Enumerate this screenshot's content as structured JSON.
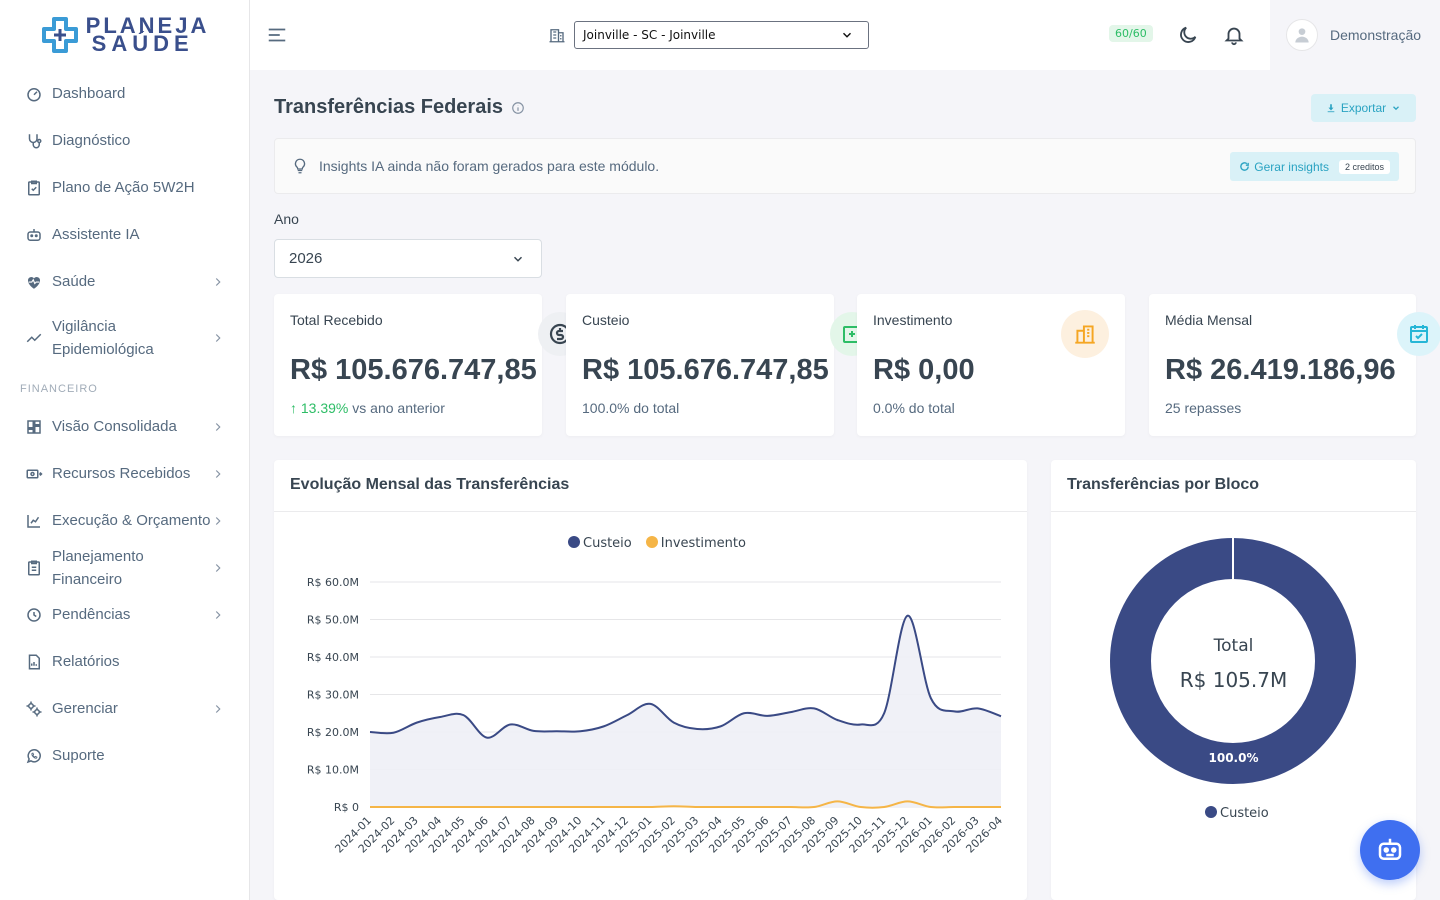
{
  "app": {
    "logo_line1": "PLANEJA",
    "logo_line2": "SAÚDE"
  },
  "sidebar": {
    "items": [
      {
        "label": "Dashboard",
        "icon": "gauge-icon"
      },
      {
        "label": "Diagnóstico",
        "icon": "stethoscope-icon"
      },
      {
        "label": "Plano de Ação 5W2H",
        "icon": "clipboard-check-icon"
      },
      {
        "label": "Assistente IA",
        "icon": "robot-icon"
      },
      {
        "label": "Saúde",
        "icon": "heart-pulse-icon",
        "has_submenu": true
      },
      {
        "label": "Vigilância Epidemiológica",
        "icon": "trend-icon",
        "has_submenu": true
      }
    ],
    "section_header": "FINANCEIRO",
    "finance_items": [
      {
        "label": "Visão Consolidada",
        "icon": "dashboard-grid-icon",
        "has_submenu": true
      },
      {
        "label": "Recursos Recebidos",
        "icon": "money-receive-icon",
        "has_submenu": true
      },
      {
        "label": "Execução & Orçamento",
        "icon": "chart-icon",
        "has_submenu": true
      },
      {
        "label": "Planejamento Financeiro",
        "icon": "clipboard-list-icon",
        "has_submenu": true
      },
      {
        "label": "Pendências",
        "icon": "clock-icon",
        "has_submenu": true
      },
      {
        "label": "Relatórios",
        "icon": "report-icon"
      },
      {
        "label": "Gerenciar",
        "icon": "settings-icon",
        "has_submenu": true
      },
      {
        "label": "Suporte",
        "icon": "whatsapp-icon"
      }
    ]
  },
  "topbar": {
    "organization": "Joinville - SC - Joinville",
    "credits": "60/60",
    "user_name": "Demonstração"
  },
  "page": {
    "title": "Transferências Federais",
    "export_label": "Exportar",
    "insights_text": "Insights IA ainda não foram gerados para este módulo.",
    "generate_label": "Gerar insights",
    "generate_credits": "2 creditos",
    "year_label": "Ano",
    "year_value": "2026"
  },
  "stats": [
    {
      "title": "Total Recebido",
      "value": "R$ 105.676.747,85",
      "change": "13.39%",
      "change_suffix": "vs ano anterior",
      "icon": "currency-icon",
      "color": "#566a7f"
    },
    {
      "title": "Custeio",
      "value": "R$ 105.676.747,85",
      "sub": "100.0% do total",
      "icon": "medical-icon",
      "color": "#2dbd66"
    },
    {
      "title": "Investimento",
      "value": "R$ 0,00",
      "sub": "0.0% do total",
      "icon": "building-icon",
      "color": "#f5a623"
    },
    {
      "title": "Média Mensal",
      "value": "R$ 26.419.186,96",
      "sub": "25 repasses",
      "icon": "calendar-check-icon",
      "color": "#26b6d6"
    }
  ],
  "line_panel": {
    "title": "Evolução Mensal das Transferências"
  },
  "donut_panel": {
    "title": "Transferências por Bloco",
    "center_label": "Total",
    "center_value": "R$ 105.7M",
    "slice_label": "100.0%"
  },
  "colors": {
    "custeio": "#3a4a85",
    "investimento": "#f5b547",
    "accent": "#2aa3c2"
  },
  "chart_data": [
    {
      "type": "line",
      "title": "Evolução Mensal das Transferências",
      "x": [
        "2024-01",
        "2024-02",
        "2024-03",
        "2024-04",
        "2024-05",
        "2024-06",
        "2024-07",
        "2024-08",
        "2024-09",
        "2024-10",
        "2024-11",
        "2024-12",
        "2025-01",
        "2025-02",
        "2025-03",
        "2025-04",
        "2025-05",
        "2025-06",
        "2025-07",
        "2025-08",
        "2025-09",
        "2025-10",
        "2025-11",
        "2025-12",
        "2026-01",
        "2026-02",
        "2026-03",
        "2026-04"
      ],
      "series": [
        {
          "name": "Custeio",
          "values": [
            20.0,
            19.8,
            22.5,
            24.0,
            24.5,
            18.5,
            22.0,
            20.3,
            20.2,
            20.2,
            21.5,
            24.5,
            27.5,
            22.5,
            20.8,
            21.5,
            25.0,
            24.3,
            25.3,
            26.3,
            23.2,
            22.0,
            25.0,
            51.0,
            29.0,
            25.5,
            26.3,
            24.2
          ]
        },
        {
          "name": "Investimento",
          "values": [
            0,
            0,
            0,
            0,
            0,
            0,
            0,
            0,
            0,
            0,
            0,
            0,
            0,
            0.2,
            0,
            0,
            0,
            0,
            0,
            0,
            1.5,
            0,
            0,
            1.5,
            0,
            0,
            0,
            0
          ]
        }
      ],
      "yticks": [
        "R$ 0",
        "R$ 10.0M",
        "R$ 20.0M",
        "R$ 30.0M",
        "R$ 40.0M",
        "R$ 50.0M",
        "R$ 60.0M"
      ],
      "ylim": [
        0,
        60
      ],
      "legend": "top"
    },
    {
      "type": "pie",
      "title": "Transferências por Bloco",
      "categories": [
        "Custeio"
      ],
      "values": [
        100.0
      ],
      "legend": "bottom"
    }
  ]
}
